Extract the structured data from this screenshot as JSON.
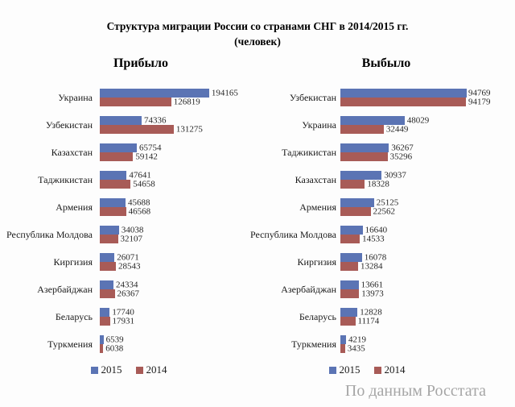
{
  "page": {
    "title": "Структура миграции России со странами СНГ в 2014/2015 гг.",
    "subtitle": "(человек)",
    "source": "По данным Росстата"
  },
  "colors": {
    "year_2015": "#5B74B4",
    "year_2014": "#A85B57"
  },
  "chart_data": [
    {
      "type": "bar",
      "orientation": "horizontal",
      "title": "Прибыло",
      "categories": [
        "Украина",
        "Узбекистан",
        "Казахстан",
        "Таджикистан",
        "Армения",
        "Республика Молдова",
        "Киргизия",
        "Азербайджан",
        "Беларусь",
        "Туркмения"
      ],
      "series": [
        {
          "name": "2015",
          "color": "#5B74B4",
          "values": [
            194165,
            74336,
            65754,
            47641,
            45688,
            34038,
            26071,
            24334,
            17740,
            6539
          ]
        },
        {
          "name": "2014",
          "color": "#A85B57",
          "values": [
            126819,
            131275,
            59142,
            54658,
            46568,
            32107,
            28543,
            26367,
            17931,
            6038
          ]
        }
      ],
      "xlim": [
        0,
        200000
      ],
      "grid": false,
      "legend_position": "bottom",
      "value_labels": true
    },
    {
      "type": "bar",
      "orientation": "horizontal",
      "title": "Выбыло",
      "categories": [
        "Узбекистан",
        "Украина",
        "Таджикистан",
        "Казахстан",
        "Армения",
        "Республика Молдова",
        "Киргизия",
        "Азербайджан",
        "Беларусь",
        "Туркмения"
      ],
      "series": [
        {
          "name": "2015",
          "color": "#5B74B4",
          "values": [
            94769,
            48029,
            36267,
            30937,
            25125,
            16640,
            16078,
            13661,
            12828,
            4219
          ]
        },
        {
          "name": "2014",
          "color": "#A85B57",
          "values": [
            94179,
            32449,
            35296,
            18328,
            22562,
            14533,
            13284,
            13973,
            11174,
            3435
          ]
        }
      ],
      "xlim": [
        0,
        100000
      ],
      "grid": false,
      "legend_position": "bottom",
      "value_labels": true
    }
  ]
}
